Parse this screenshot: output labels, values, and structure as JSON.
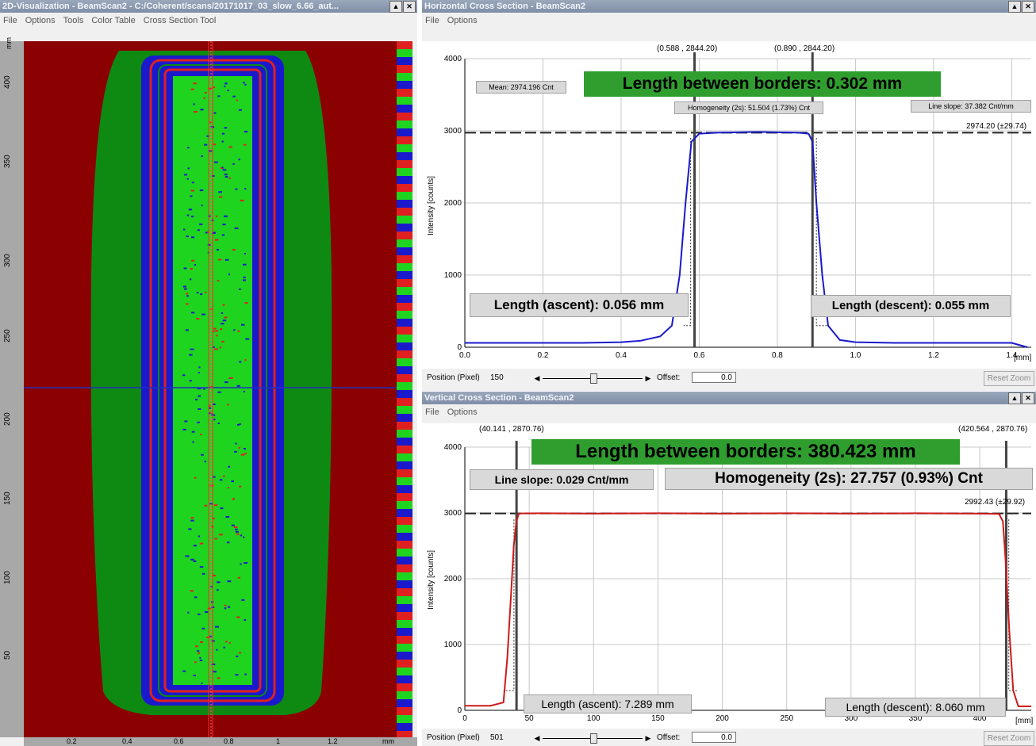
{
  "left_window": {
    "title": "2D-Visualization - BeamScan2 - C:/Coherent/scans/20171017_03_slow_6.66_aut...",
    "menu": [
      "File",
      "Options",
      "Tools",
      "Color Table",
      "Cross Section Tool"
    ],
    "y_unit": "mm",
    "x_unit": "mm",
    "y_ticks": [
      "400",
      "350",
      "300",
      "250",
      "200",
      "150",
      "100",
      "50"
    ],
    "x_ticks": [
      "0.2",
      "0.4",
      "0.6",
      "0.8",
      "1",
      "1.2"
    ],
    "colors": {
      "background": "#8b0000",
      "outer": "#0e8a12",
      "edge": "#1a1acc",
      "core": "#1fd41f",
      "ring": "#e02020"
    }
  },
  "horizontal_window": {
    "title": "Horizontal Cross Section - BeamScan2",
    "menu": [
      "File",
      "Options"
    ],
    "length_between_borders": "Length between borders: 0.302 mm",
    "mean": "Mean: 2974.196 Cnt",
    "homogeneity": "Homogeneity (2s): 51.504 (1.73%) Cnt",
    "line_slope": "Line slope: 37.382 Cnt/mm",
    "level_label": "2974.20 (±29.74)",
    "left_border": "(0.588 , 2844.20)",
    "right_border": "(0.890 , 2844.20)",
    "length_ascent": "Length (ascent): 0.056 mm",
    "length_descent": "Length (descent): 0.055 mm",
    "position_label": "Position (Pixel)",
    "position_value": "150",
    "offset_label": "Offset:",
    "offset_value": "0.0",
    "reset_zoom": "Reset Zoom",
    "x_unit": "[mm]"
  },
  "vertical_window": {
    "title": "Vertical Cross Section - BeamScan2",
    "menu": [
      "File",
      "Options"
    ],
    "length_between_borders": "Length between borders: 380.423 mm",
    "line_slope": "Line slope: 0.029 Cnt/mm",
    "homogeneity": "Homogeneity (2s): 27.757 (0.93%) Cnt",
    "level_label": "2992.43 (±29.92)",
    "left_border": "(40.141 , 2870.76)",
    "right_border": "(420.564 , 2870.76)",
    "length_ascent": "Length (ascent): 7.289 mm",
    "length_descent": "Length (descent): 8.060 mm",
    "position_label": "Position (Pixel)",
    "position_value": "501",
    "offset_label": "Offset:",
    "offset_value": "0.0",
    "reset_zoom": "Reset Zoom",
    "x_unit": "[mm]"
  },
  "chart_data": [
    {
      "type": "line",
      "ylabel": "Intensity [counts]",
      "xlabel": "[mm]",
      "xlim": [
        0,
        1.45
      ],
      "ylim": [
        0,
        4000
      ],
      "x_ticks": [
        0.0,
        0.2,
        0.4,
        0.6,
        0.8,
        1.0,
        1.2,
        1.4
      ],
      "x_tick_labels": [
        "0.0",
        "0.2",
        "0.4",
        "0.6",
        "0.8",
        "1.0",
        "1.2",
        "1.4"
      ],
      "y_ticks": [
        0,
        1000,
        2000,
        3000,
        4000
      ],
      "y_tick_labels": [
        "0",
        "1000",
        "2000",
        "3000",
        "4000"
      ],
      "series": [
        {
          "color": "#1a1acc",
          "x": [
            0.0,
            0.1,
            0.2,
            0.3,
            0.4,
            0.45,
            0.5,
            0.53,
            0.55,
            0.565,
            0.58,
            0.6,
            0.65,
            0.7,
            0.75,
            0.8,
            0.85,
            0.88,
            0.89,
            0.9,
            0.915,
            0.93,
            0.96,
            1.0,
            1.1,
            1.2,
            1.3,
            1.4,
            1.44
          ],
          "y": [
            60,
            60,
            60,
            60,
            70,
            90,
            150,
            300,
            1000,
            2000,
            2850,
            2960,
            2975,
            2980,
            2985,
            2980,
            2975,
            2960,
            2850,
            2000,
            1000,
            300,
            100,
            70,
            60,
            60,
            60,
            60,
            0
          ]
        }
      ],
      "level_y": 2974.2,
      "borders_x": [
        0.588,
        0.89
      ]
    },
    {
      "type": "line",
      "ylabel": "Intensity [counts]",
      "xlabel": "[mm]",
      "xlim": [
        0,
        440
      ],
      "ylim": [
        0,
        4000
      ],
      "x_ticks": [
        0,
        50,
        100,
        150,
        200,
        250,
        300,
        350,
        400
      ],
      "x_tick_labels": [
        "0",
        "50",
        "100",
        "150",
        "200",
        "250",
        "300",
        "350",
        "400"
      ],
      "y_ticks": [
        0,
        1000,
        2000,
        3000,
        4000
      ],
      "y_tick_labels": [
        "0",
        "1000",
        "2000",
        "3000",
        "4000"
      ],
      "series": [
        {
          "color": "#cc1a1a",
          "x": [
            0,
            20,
            30,
            33,
            36,
            38,
            40,
            42,
            45,
            60,
            100,
            150,
            200,
            250,
            300,
            350,
            400,
            415,
            418,
            420,
            423,
            426,
            430,
            440
          ],
          "y": [
            70,
            70,
            120,
            800,
            1800,
            2500,
            2870,
            2990,
            2992,
            2995,
            2990,
            2995,
            2990,
            2995,
            2990,
            2995,
            2990,
            2985,
            2870,
            2300,
            1200,
            300,
            60,
            60
          ]
        }
      ],
      "level_y": 2992.43,
      "borders_x": [
        40.141,
        420.564
      ]
    }
  ]
}
